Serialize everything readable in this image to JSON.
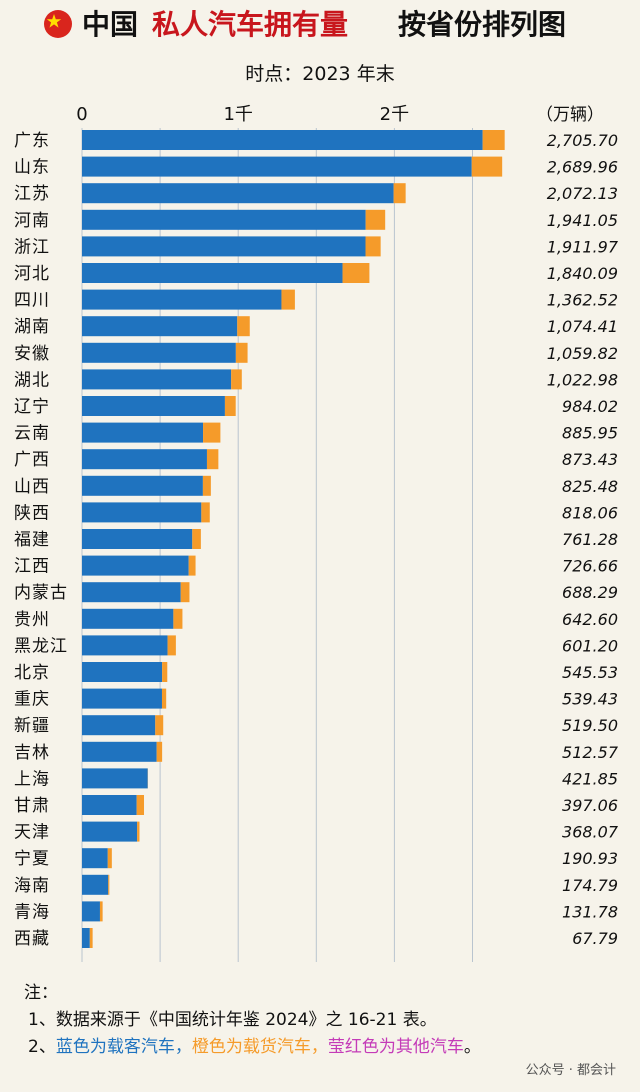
{
  "header": {
    "title_pre": "中国",
    "title_red": "私人汽车拥有量",
    "title_post": "按省份排列图",
    "subtitle": "时点：2023 年末",
    "unit": "（万辆）"
  },
  "notes": {
    "heading": "注：",
    "line1": "1、数据来源于《中国统计年鉴 2024》之 16-21 表。",
    "line2_prefix": "2、",
    "line2_blue": "蓝色为载客汽车，",
    "line2_orange": "橙色为载货汽车，",
    "line2_magenta": "莹红色为其他汽车",
    "line2_end": "。"
  },
  "watermark": "公众号 · 都会计",
  "colors": {
    "passenger": "#1f73bf",
    "cargo": "#f59b2a",
    "other": "#c43bb8",
    "title_red": "#c8161d",
    "background": "#f6f3ea"
  },
  "chart_data": {
    "type": "bar",
    "orientation": "horizontal",
    "stacked": true,
    "xlim": [
      0,
      2750
    ],
    "x_ticks": [
      {
        "value": 0,
        "label": "0"
      },
      {
        "value": 1000,
        "label": "1千"
      },
      {
        "value": 2000,
        "label": "2千"
      }
    ],
    "grid": true,
    "categories": [
      "广东",
      "山东",
      "江苏",
      "河南",
      "浙江",
      "河北",
      "四川",
      "湖南",
      "安徽",
      "湖北",
      "辽宁",
      "云南",
      "广西",
      "山西",
      "陕西",
      "福建",
      "江西",
      "内蒙古",
      "贵州",
      "黑龙江",
      "北京",
      "重庆",
      "新疆",
      "吉林",
      "上海",
      "甘肃",
      "天津",
      "宁夏",
      "海南",
      "青海",
      "西藏"
    ],
    "totals": [
      2705.7,
      2689.96,
      2072.13,
      1941.05,
      1911.97,
      1840.09,
      1362.52,
      1074.41,
      1059.82,
      1022.98,
      984.02,
      885.95,
      873.43,
      825.48,
      818.06,
      761.28,
      726.66,
      688.29,
      642.6,
      601.2,
      545.53,
      539.43,
      519.5,
      512.57,
      421.85,
      397.06,
      368.07,
      190.93,
      174.79,
      131.78,
      67.79
    ],
    "total_labels": [
      "2,705.70",
      "2,689.96",
      "2,072.13",
      "1,941.05",
      "1,911.97",
      "1,840.09",
      "1,362.52",
      "1,074.41",
      "1,059.82",
      "1,022.98",
      "984.02",
      "885.95",
      "873.43",
      "825.48",
      "818.06",
      "761.28",
      "726.66",
      "688.29",
      "642.60",
      "601.20",
      "545.53",
      "539.43",
      "519.50",
      "512.57",
      "421.85",
      "397.06",
      "368.07",
      "190.93",
      "174.79",
      "131.78",
      "67.79"
    ],
    "series": [
      {
        "name": "载客汽车",
        "values": [
          2565,
          2495,
          1995,
          1816,
          1815,
          1668,
          1277,
          994,
          985,
          955,
          915,
          775,
          800,
          774,
          764,
          706,
          683,
          632,
          585,
          548,
          513,
          512,
          469,
          478,
          421,
          350,
          353,
          165,
          168,
          115,
          50
        ]
      },
      {
        "name": "载货汽车",
        "values": [
          141,
          195,
          77,
          125,
          97,
          172,
          86,
          80,
          75,
          68,
          69,
          111,
          73,
          51,
          54,
          55,
          44,
          56,
          58,
          53,
          33,
          27,
          51,
          35,
          1,
          47,
          15,
          26,
          7,
          17,
          18
        ]
      }
    ]
  }
}
